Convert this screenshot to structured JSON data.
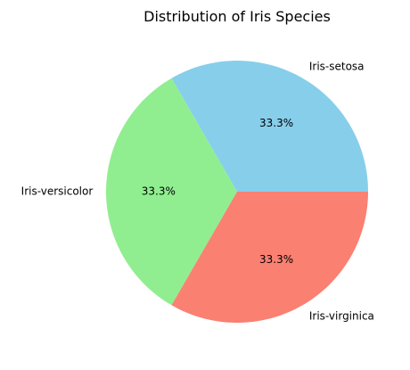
{
  "chart_data": {
    "type": "pie",
    "title": "Distribution of Iris Species",
    "categories": [
      "Iris-setosa",
      "Iris-versicolor",
      "Iris-virginica"
    ],
    "values": [
      33.3,
      33.3,
      33.3
    ],
    "value_labels": [
      "33.3%",
      "33.3%",
      "33.3%"
    ],
    "colors": [
      "#87CEEB",
      "#90EE90",
      "#FA8072"
    ],
    "start_angle_deg": 0,
    "direction": "counterclockwise"
  }
}
